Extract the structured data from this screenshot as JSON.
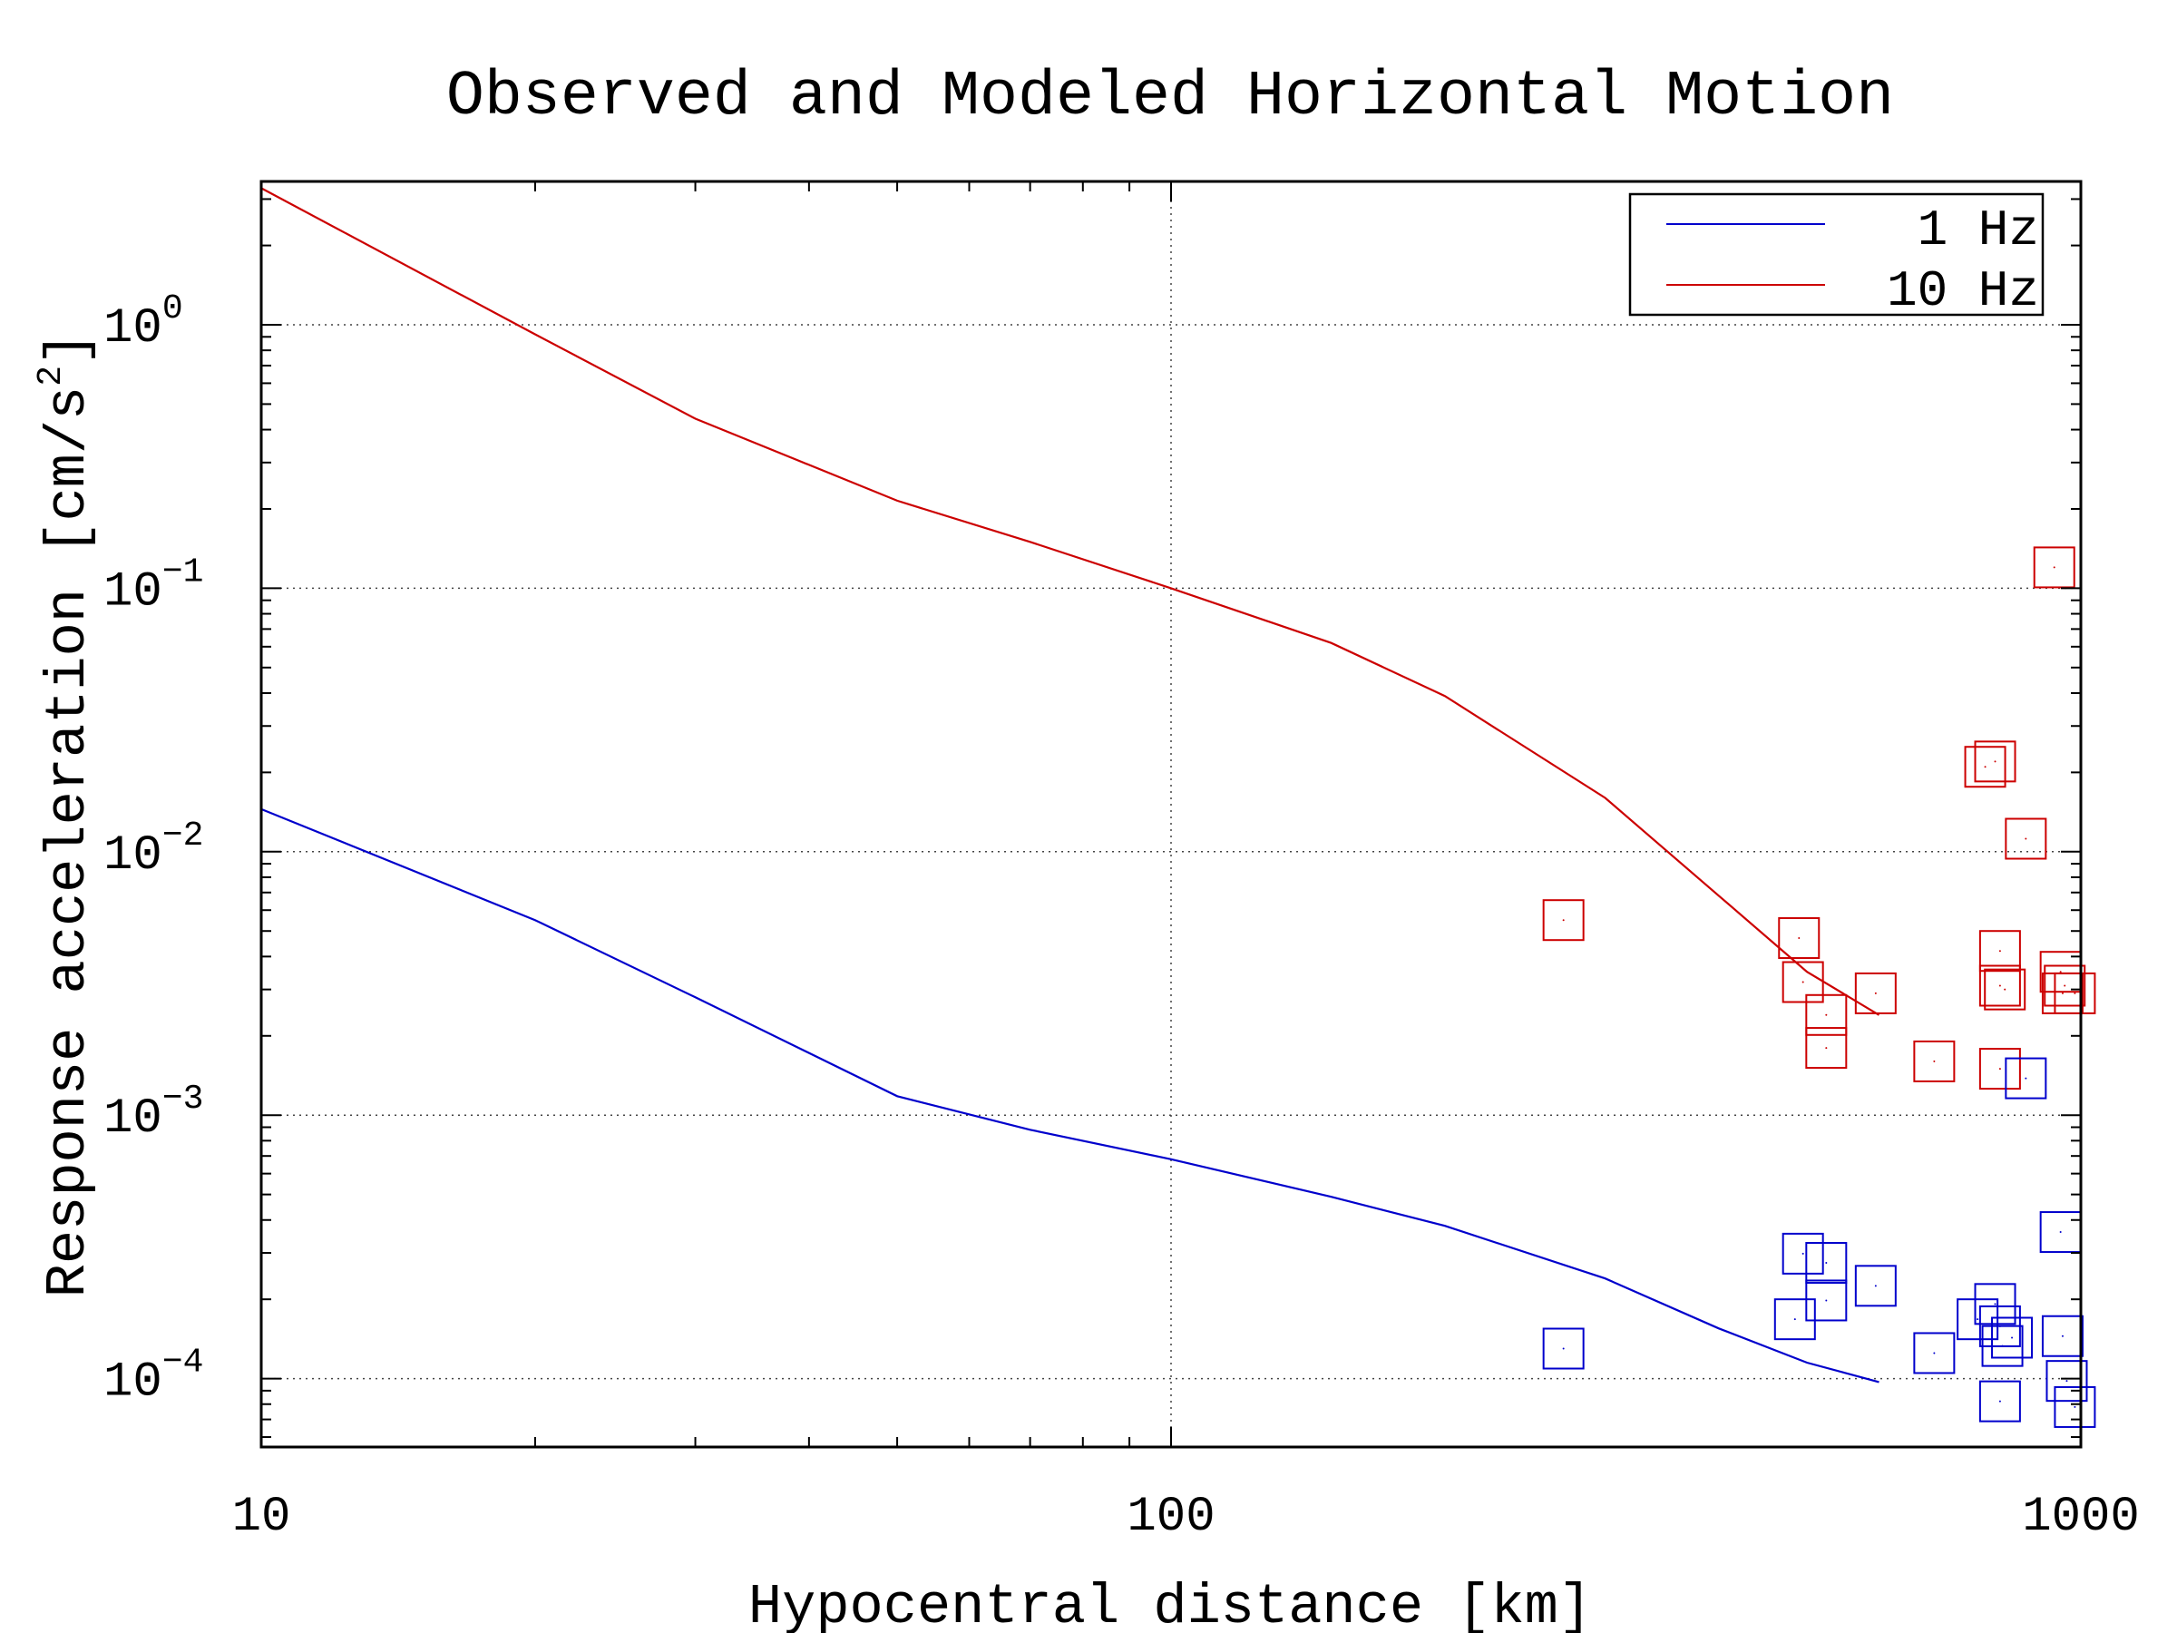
{
  "chart_data": {
    "type": "scatter",
    "title": "Observed and Modeled Horizontal Motion",
    "xlabel": "Hypocentral distance [km]",
    "ylabel": "Response acceleration [cm/s",
    "ylabel_sup": "2",
    "ylabel_close": "]",
    "xscale": "log",
    "yscale": "log",
    "xlim": [
      10,
      1000
    ],
    "ylim": [
      5.5e-05,
      3.5
    ],
    "grid": true,
    "legend_position": "top-right",
    "x_ticks": [
      {
        "value": 10,
        "label": "10"
      },
      {
        "value": 100,
        "label": "100"
      },
      {
        "value": 1000,
        "label": "1000"
      }
    ],
    "y_ticks": [
      {
        "value": 1,
        "base": "10",
        "exp": "0"
      },
      {
        "value": 0.1,
        "base": "10",
        "exp": "−1"
      },
      {
        "value": 0.01,
        "base": "10",
        "exp": "−2"
      },
      {
        "value": 0.001,
        "base": "10",
        "exp": "−3"
      },
      {
        "value": 0.0001,
        "base": "10",
        "exp": "−4"
      }
    ],
    "series": [
      {
        "name": "1 Hz",
        "color": "#0000cc",
        "kind": "line",
        "x": [
          10,
          20,
          30,
          50,
          70,
          100,
          150,
          200,
          300,
          400,
          500,
          600
        ],
        "y": [
          0.0145,
          0.0055,
          0.0028,
          0.00118,
          0.00088,
          0.00068,
          0.00049,
          0.00038,
          0.00024,
          0.000155,
          0.000115,
          9.7e-05
        ]
      },
      {
        "name": "10 Hz",
        "color": "#cc0000",
        "kind": "line",
        "x": [
          10,
          20,
          30,
          50,
          70,
          100,
          150,
          200,
          300,
          400,
          500,
          600
        ],
        "y": [
          3.3,
          0.92,
          0.44,
          0.215,
          0.15,
          0.1,
          0.062,
          0.039,
          0.016,
          0.0068,
          0.0035,
          0.0024
        ]
      },
      {
        "color": "#cc0000",
        "kind": "markers",
        "x": [
          270,
          490,
          495,
          525,
          525,
          595,
          690,
          785,
          805,
          815,
          815,
          815,
          825,
          870,
          935,
          950,
          955,
          960,
          985
        ],
        "y": [
          0.0055,
          0.0047,
          0.0032,
          0.0024,
          0.0018,
          0.0029,
          0.0016,
          0.021,
          0.022,
          0.0042,
          0.0031,
          0.0015,
          0.003,
          0.0112,
          0.12,
          0.0035,
          0.0029,
          0.0031,
          0.0029
        ]
      },
      {
        "color": "#0000cc",
        "kind": "markers",
        "x": [
          270,
          485,
          495,
          525,
          525,
          595,
          690,
          770,
          805,
          815,
          815,
          820,
          840,
          870,
          950,
          955,
          965,
          985
        ],
        "y": [
          0.00013,
          0.000168,
          0.000298,
          0.000275,
          0.000198,
          0.000225,
          0.000125,
          0.000168,
          0.000192,
          0.000158,
          8.2e-05,
          0.000133,
          0.000143,
          0.00138,
          0.00036,
          0.000145,
          9.8e-05,
          7.8e-05
        ]
      }
    ]
  }
}
